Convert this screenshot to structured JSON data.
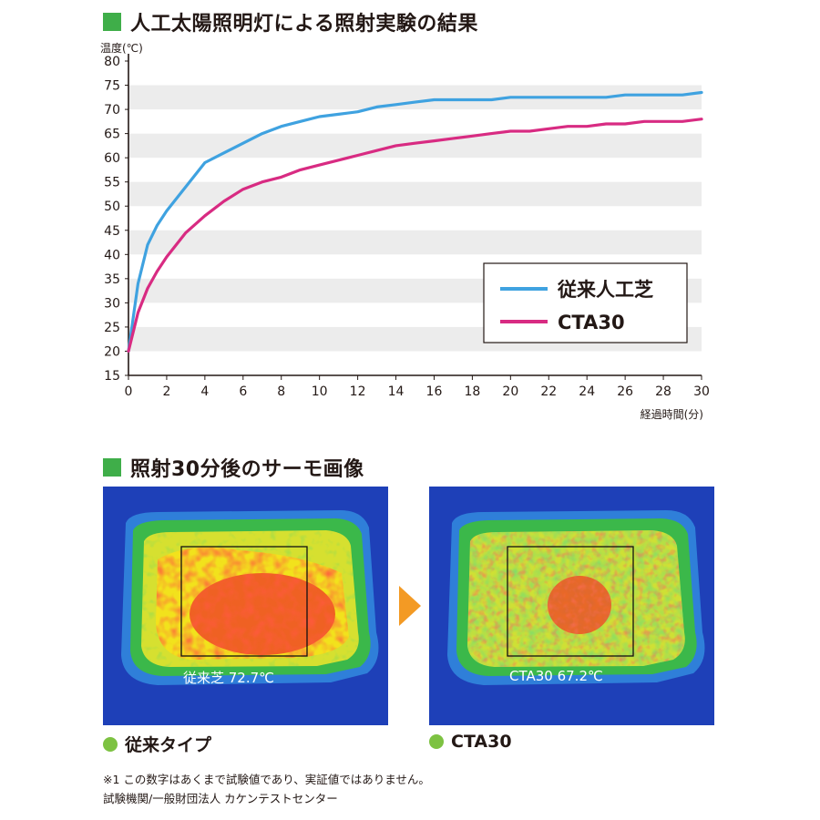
{
  "heading_1": "人工太陽照明灯による照射実験の結果",
  "heading_2": "照射30分後のサーモ画像",
  "chart_data": {
    "type": "line",
    "ylabel": "温度(℃)",
    "xlabel": "経過時間(分)",
    "xlim": [
      0,
      30
    ],
    "ylim": [
      15,
      80
    ],
    "xticks": [
      0,
      2,
      4,
      6,
      8,
      10,
      12,
      14,
      16,
      18,
      20,
      22,
      24,
      26,
      28,
      30
    ],
    "yticks": [
      15,
      20,
      25,
      30,
      35,
      40,
      45,
      50,
      55,
      60,
      65,
      70,
      75,
      80
    ],
    "grid": "alternating horizontal bands",
    "legend_position": "bottom-right",
    "series": [
      {
        "name": "従来人工芝",
        "color": "#3fa2e0",
        "x": [
          0,
          0.5,
          1,
          1.5,
          2,
          3,
          4,
          5,
          6,
          7,
          8,
          9,
          10,
          11,
          12,
          13,
          14,
          15,
          16,
          17,
          18,
          19,
          20,
          21,
          22,
          23,
          24,
          25,
          26,
          27,
          28,
          29,
          30
        ],
        "values": [
          20,
          34,
          42,
          46,
          49,
          54,
          59,
          61,
          63,
          65,
          66.5,
          67.5,
          68.5,
          69,
          69.5,
          70.5,
          71,
          71.5,
          72,
          72,
          72,
          72,
          72.5,
          72.5,
          72.5,
          72.5,
          72.5,
          72.5,
          73,
          73,
          73,
          73,
          73.5
        ]
      },
      {
        "name": "CTA30",
        "color": "#d82b82",
        "x": [
          0,
          0.5,
          1,
          1.5,
          2,
          3,
          4,
          5,
          6,
          7,
          8,
          9,
          10,
          11,
          12,
          13,
          14,
          15,
          16,
          17,
          18,
          19,
          20,
          21,
          22,
          23,
          24,
          25,
          26,
          27,
          28,
          29,
          30
        ],
        "values": [
          20,
          28,
          33,
          36.5,
          39.5,
          44.5,
          48,
          51,
          53.5,
          55,
          56,
          57.5,
          58.5,
          59.5,
          60.5,
          61.5,
          62.5,
          63,
          63.5,
          64,
          64.5,
          65,
          65.5,
          65.5,
          66,
          66.5,
          66.5,
          67,
          67,
          67.5,
          67.5,
          67.5,
          68
        ]
      }
    ]
  },
  "thermo": {
    "left_label": "従来芝 72.7℃",
    "right_label": "CTA30 67.2℃",
    "left_caption": "従来タイプ",
    "right_caption": "CTA30"
  },
  "notes": {
    "line1": "※1 この数字はあくまで試験値であり、実証値ではありません。",
    "line2": "試験機関/一般財団法人 カケンテストセンター"
  }
}
